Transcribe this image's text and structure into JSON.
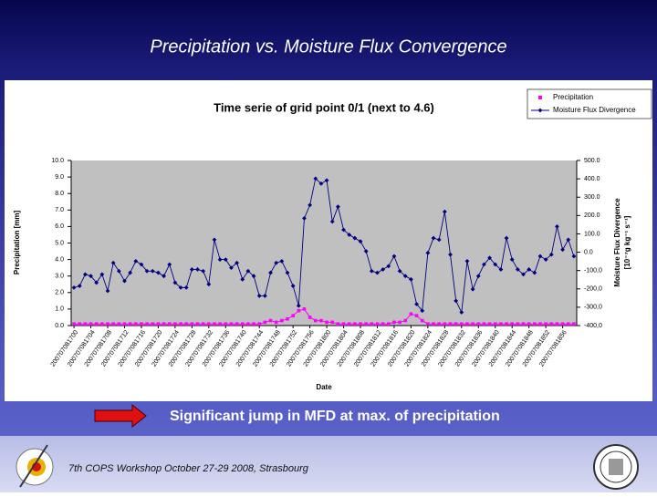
{
  "slide": {
    "title": "Precipitation vs. Moisture Flux Convergence",
    "caption": "Significant jump in MFD at max. of precipitation",
    "footer": "7th COPS Workshop  October 27-29 2008, Strasbourg"
  },
  "chart_data": {
    "type": "line",
    "title": "Time serie of grid point 0/1 (next to 4.6)",
    "xlabel": "Date",
    "ylabel": "Precipitation [mm]",
    "y2label": "Moisture Flux Divergence",
    "y2unit": "[10⁻⁷g kg⁻¹ s⁻¹]",
    "legend": "top-right",
    "categories": [
      "200707081700",
      null,
      null,
      "200707081704",
      null,
      null,
      "200707081708",
      null,
      null,
      "200707081712",
      null,
      null,
      "200707081716",
      null,
      null,
      "200707081720",
      null,
      null,
      "200707081724",
      null,
      null,
      "200707081728",
      null,
      null,
      "200707081732",
      null,
      null,
      "200707081736",
      null,
      null,
      "200707081740",
      null,
      null,
      "200707081744",
      null,
      null,
      "200707081748",
      null,
      null,
      "200707081752",
      null,
      null,
      "200707081756",
      null,
      null,
      "200707081800",
      null,
      null,
      "200707081804",
      null,
      null,
      "200707081808",
      null,
      null,
      "200707081812",
      null,
      null,
      "200707081816",
      null,
      null,
      "200707081820",
      null,
      null,
      "200707081824",
      null,
      null,
      "200707081828",
      null,
      null,
      "200707081832",
      null,
      null,
      "200707081836",
      null,
      null,
      "200707081840",
      null,
      null,
      "200707081844",
      null,
      null,
      "200707081848",
      null,
      null,
      "200707081852",
      null,
      null,
      "200707081856",
      null,
      null
    ],
    "series": [
      {
        "name": "Precipitation",
        "color": "#ff00ff",
        "marker": "square",
        "values": [
          0.1,
          0.1,
          0.1,
          0.1,
          0.1,
          0.1,
          0.1,
          0.1,
          0.1,
          0.1,
          0.1,
          0.1,
          0.1,
          0.1,
          0.1,
          0.1,
          0.1,
          0.1,
          0.1,
          0.1,
          0.1,
          0.1,
          0.1,
          0.1,
          0.1,
          0.1,
          0.1,
          0.1,
          0.1,
          0.1,
          0.1,
          0.1,
          0.1,
          0.1,
          0.2,
          0.3,
          0.2,
          0.3,
          0.4,
          0.6,
          0.9,
          1.0,
          0.5,
          0.3,
          0.3,
          0.2,
          0.2,
          0.1,
          0.1,
          0.1,
          0.1,
          0.1,
          0.1,
          0.1,
          0.1,
          0.1,
          0.1,
          0.2,
          0.2,
          0.3,
          0.7,
          0.6,
          0.3,
          0.1,
          0.1,
          0.1,
          0.1,
          0.1,
          0.1,
          0.1,
          0.1,
          0.1,
          0.1,
          0.1,
          0.1,
          0.1,
          0.1,
          0.1,
          0.1,
          0.1,
          0.1,
          0.1,
          0.1,
          0.1,
          0.1,
          0.1,
          0.1,
          0.1,
          0.1,
          0.1
        ]
      },
      {
        "name": "Moisture Flux Divergence",
        "color": "#000080",
        "marker": "diamond",
        "axis": "y2",
        "values": [
          -193,
          -184,
          -121,
          -130,
          -166,
          -121,
          -211,
          -58,
          -103,
          -157,
          -112,
          -49,
          -67,
          -103,
          -103,
          -112,
          -130,
          -67,
          -166,
          -193,
          -193,
          -94,
          -94,
          -103,
          -175,
          68,
          -40,
          -40,
          -85,
          -58,
          -148,
          -103,
          -130,
          -238,
          -238,
          -112,
          -58,
          -49,
          -112,
          -184,
          -292,
          185,
          257,
          401,
          374,
          392,
          167,
          248,
          122,
          95,
          77,
          59,
          5,
          -103,
          -112,
          -94,
          -76,
          -22,
          -103,
          -130,
          -148,
          -283,
          -319,
          -4,
          77,
          68,
          221,
          -13,
          -265,
          -328,
          -49,
          -202,
          -130,
          -67,
          -31,
          -67,
          -94,
          77,
          -40,
          -94,
          -121,
          -94,
          -112,
          -22,
          -40,
          -13,
          140,
          14,
          68,
          -22
        ]
      }
    ],
    "ylim": [
      0,
      10
    ],
    "yticks": [
      {
        "value": 0,
        "label": "0.0"
      },
      {
        "value": 1,
        "label": "1.0"
      },
      {
        "value": 2,
        "label": "2.0"
      },
      {
        "value": 3,
        "label": "3.0"
      },
      {
        "value": 4,
        "label": "4.0"
      },
      {
        "value": 5,
        "label": "5.0"
      },
      {
        "value": 6,
        "label": "6.0"
      },
      {
        "value": 7,
        "label": "7.0"
      },
      {
        "value": 8,
        "label": "8.0"
      },
      {
        "value": 9,
        "label": "9.0"
      },
      {
        "value": 10,
        "label": "10.0"
      }
    ],
    "y2lim": [
      -400,
      500
    ],
    "y2ticks": [
      {
        "value": 500,
        "label": "500.0"
      },
      {
        "value": 400,
        "label": "400.0"
      },
      {
        "value": 300,
        "label": "300.0"
      },
      {
        "value": 200,
        "label": "200.0"
      },
      {
        "value": 100,
        "label": "100.0"
      },
      {
        "value": 0,
        "label": "0.0"
      },
      {
        "value": -100,
        "label": "-100,0"
      },
      {
        "value": -200,
        "label": "-200,0"
      },
      {
        "value": -300,
        "label": "-300,0"
      },
      {
        "value": -400,
        "label": "-400,0"
      }
    ],
    "grid": false,
    "plot_background": "#c0c0c0"
  }
}
